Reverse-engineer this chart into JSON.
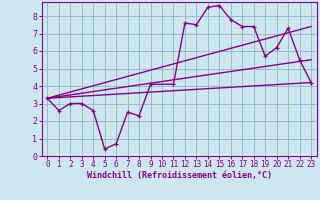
{
  "title": "",
  "xlabel": "Windchill (Refroidissement éolien,°C)",
  "bg_color": "#cce8ee",
  "line_color": "#880088",
  "grid_color": "#99bbcc",
  "xlim": [
    -0.5,
    23.5
  ],
  "ylim": [
    0,
    8.8
  ],
  "xticks": [
    0,
    1,
    2,
    3,
    4,
    5,
    6,
    7,
    8,
    9,
    10,
    11,
    12,
    13,
    14,
    15,
    16,
    17,
    18,
    19,
    20,
    21,
    22,
    23
  ],
  "yticks": [
    0,
    1,
    2,
    3,
    4,
    5,
    6,
    7,
    8
  ],
  "series1_x": [
    0,
    1,
    2,
    3,
    4,
    5,
    6,
    7,
    8,
    9,
    11,
    12,
    13,
    14,
    15,
    16,
    17,
    18,
    19,
    20,
    21,
    22,
    23
  ],
  "series1_y": [
    3.3,
    2.6,
    3.0,
    3.0,
    2.6,
    0.4,
    0.7,
    2.5,
    2.3,
    4.1,
    4.1,
    7.6,
    7.5,
    8.5,
    8.6,
    7.8,
    7.4,
    7.4,
    5.7,
    6.2,
    7.3,
    5.5,
    4.2
  ],
  "series2_x": [
    0,
    23
  ],
  "series2_y": [
    3.3,
    7.4
  ],
  "series3_x": [
    0,
    23
  ],
  "series3_y": [
    3.3,
    5.5
  ],
  "series4_x": [
    0,
    23
  ],
  "series4_y": [
    3.3,
    4.2
  ]
}
